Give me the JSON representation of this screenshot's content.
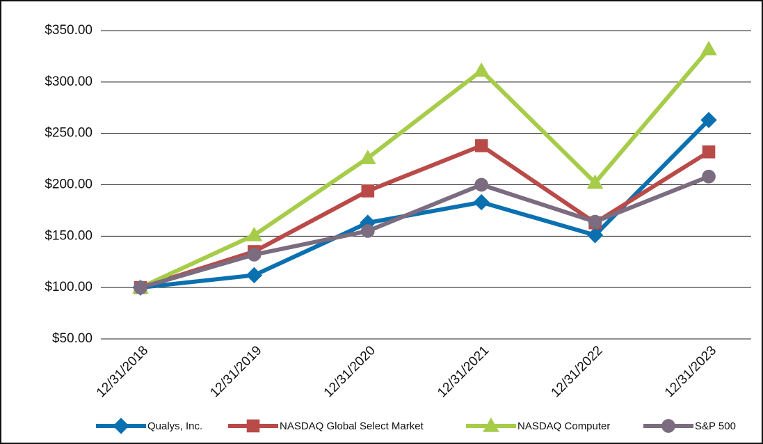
{
  "chart_data": {
    "type": "line",
    "categories": [
      "12/31/2018",
      "12/31/2019",
      "12/31/2020",
      "12/31/2021",
      "12/31/2022",
      "12/31/2023"
    ],
    "series": [
      {
        "name": "Qualys, Inc.",
        "color": "#0a70b0",
        "marker": "diamond",
        "values": [
          100,
          112,
          163,
          183,
          151,
          263
        ]
      },
      {
        "name": "NASDAQ Global Select Market",
        "color": "#b94a48",
        "marker": "square",
        "values": [
          100,
          135,
          194,
          238,
          163,
          232
        ]
      },
      {
        "name": "NASDAQ Computer",
        "color": "#a6cc4a",
        "marker": "triangle",
        "values": [
          100,
          151,
          226,
          311,
          202,
          332
        ]
      },
      {
        "name": "S&P 500",
        "color": "#7b6c80",
        "marker": "circle",
        "values": [
          100,
          132,
          155,
          200,
          164,
          208
        ]
      }
    ],
    "ylim": [
      50,
      350
    ],
    "yticks": [
      {
        "value": 50,
        "label": "$50.00"
      },
      {
        "value": 100,
        "label": "$100.00"
      },
      {
        "value": 150,
        "label": "$150.00"
      },
      {
        "value": 200,
        "label": "$200.00"
      },
      {
        "value": 250,
        "label": "$250.00"
      },
      {
        "value": 300,
        "label": "$300.00"
      },
      {
        "value": 350,
        "label": "$350.00"
      }
    ],
    "grid": true,
    "legend": "bottom"
  }
}
